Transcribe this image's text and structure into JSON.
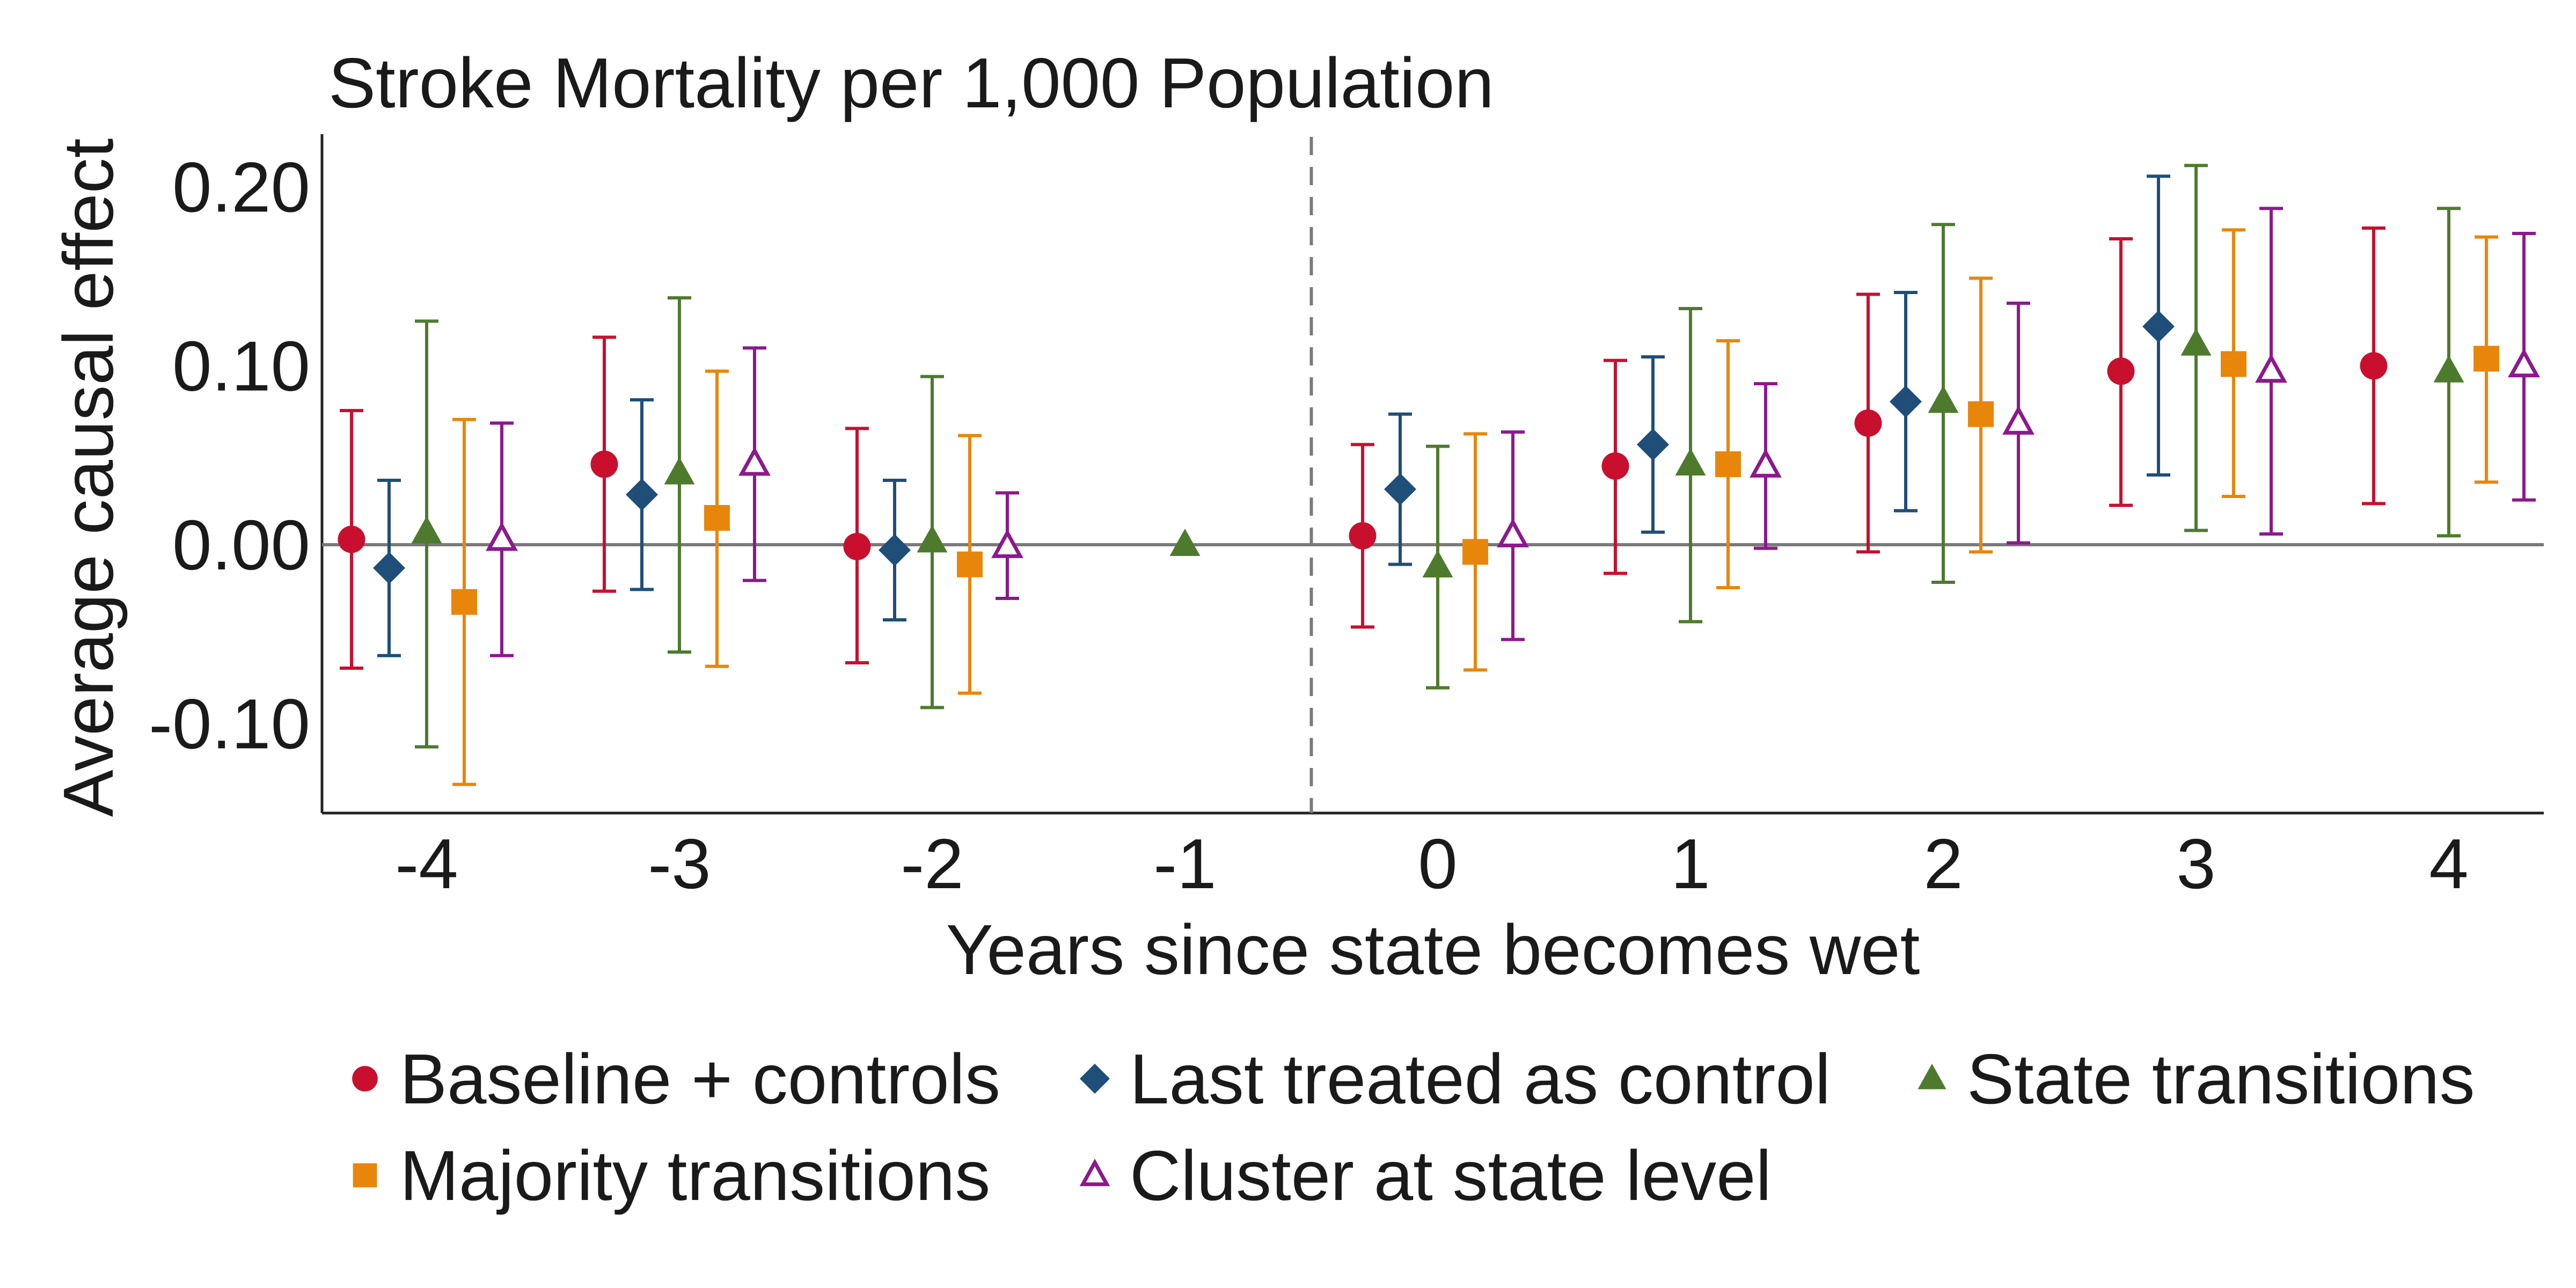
{
  "chart_data": {
    "type": "scatter",
    "title": "Stroke Mortality per 1,000 Population",
    "xlabel": "Years since state becomes wet",
    "ylabel": "Average causal effect",
    "x_categories": [
      "-4",
      "-3",
      "-2",
      "-1",
      "0",
      "1",
      "2",
      "3",
      "4"
    ],
    "y_ticks": [
      -0.1,
      0.0,
      0.1,
      0.2
    ],
    "y_tick_labels": [
      "-0.10",
      "0.00",
      "0.10",
      "0.20"
    ],
    "ylim": [
      -0.15,
      0.228
    ],
    "reference_line_y": 0.0,
    "treatment_line_between": [
      "-1",
      "0"
    ],
    "legend_position": "bottom",
    "grid": false,
    "series": [
      {
        "name": "Baseline + controls",
        "marker": "circle",
        "color": "#C8102E",
        "points": [
          {
            "x": "-4",
            "est": 0.003,
            "lo": -0.069,
            "hi": 0.075
          },
          {
            "x": "-3",
            "est": 0.045,
            "lo": -0.026,
            "hi": 0.116
          },
          {
            "x": "-2",
            "est": -0.001,
            "lo": -0.066,
            "hi": 0.065
          },
          {
            "x": "0",
            "est": 0.005,
            "lo": -0.046,
            "hi": 0.056
          },
          {
            "x": "1",
            "est": 0.044,
            "lo": -0.016,
            "hi": 0.103
          },
          {
            "x": "2",
            "est": 0.068,
            "lo": -0.004,
            "hi": 0.14
          },
          {
            "x": "3",
            "est": 0.097,
            "lo": 0.022,
            "hi": 0.171
          },
          {
            "x": "4",
            "est": 0.1,
            "lo": 0.023,
            "hi": 0.177
          }
        ]
      },
      {
        "name": "Last treated as control",
        "marker": "diamond",
        "color": "#1F4E79",
        "points": [
          {
            "x": "-4",
            "est": -0.013,
            "lo": -0.062,
            "hi": 0.036
          },
          {
            "x": "-3",
            "est": 0.028,
            "lo": -0.025,
            "hi": 0.081
          },
          {
            "x": "-2",
            "est": -0.003,
            "lo": -0.042,
            "hi": 0.036
          },
          {
            "x": "0",
            "est": 0.031,
            "lo": -0.011,
            "hi": 0.073
          },
          {
            "x": "1",
            "est": 0.056,
            "lo": 0.007,
            "hi": 0.105
          },
          {
            "x": "2",
            "est": 0.08,
            "lo": 0.019,
            "hi": 0.141
          },
          {
            "x": "3",
            "est": 0.122,
            "lo": 0.039,
            "hi": 0.206
          }
        ]
      },
      {
        "name": "State transitions",
        "marker": "triangle",
        "color": "#4E7A2E",
        "points": [
          {
            "x": "-4",
            "est": 0.007,
            "lo": -0.113,
            "hi": 0.125
          },
          {
            "x": "-3",
            "est": 0.04,
            "lo": -0.06,
            "hi": 0.138
          },
          {
            "x": "-2",
            "est": 0.002,
            "lo": -0.091,
            "hi": 0.094
          },
          {
            "x": "-1",
            "est": 0.0
          },
          {
            "x": "0",
            "est": -0.012,
            "lo": -0.08,
            "hi": 0.055
          },
          {
            "x": "1",
            "est": 0.045,
            "lo": -0.043,
            "hi": 0.132
          },
          {
            "x": "2",
            "est": 0.08,
            "lo": -0.021,
            "hi": 0.179
          },
          {
            "x": "3",
            "est": 0.112,
            "lo": 0.008,
            "hi": 0.212
          },
          {
            "x": "4",
            "est": 0.097,
            "lo": 0.005,
            "hi": 0.188
          }
        ]
      },
      {
        "name": "Majority transitions",
        "marker": "square",
        "color": "#E8860C",
        "points": [
          {
            "x": "-4",
            "est": -0.032,
            "lo": -0.134,
            "hi": 0.07
          },
          {
            "x": "-3",
            "est": 0.015,
            "lo": -0.068,
            "hi": 0.097
          },
          {
            "x": "-2",
            "est": -0.011,
            "lo": -0.083,
            "hi": 0.061
          },
          {
            "x": "0",
            "est": -0.004,
            "lo": -0.07,
            "hi": 0.062
          },
          {
            "x": "1",
            "est": 0.045,
            "lo": -0.024,
            "hi": 0.114
          },
          {
            "x": "2",
            "est": 0.073,
            "lo": -0.004,
            "hi": 0.149
          },
          {
            "x": "3",
            "est": 0.101,
            "lo": 0.027,
            "hi": 0.176
          },
          {
            "x": "4",
            "est": 0.104,
            "lo": 0.035,
            "hi": 0.172
          }
        ]
      },
      {
        "name": "Cluster at state level",
        "marker": "triangle-open",
        "color": "#8B1A8B",
        "points": [
          {
            "x": "-4",
            "est": 0.003,
            "lo": -0.062,
            "hi": 0.068
          },
          {
            "x": "-3",
            "est": 0.045,
            "lo": -0.02,
            "hi": 0.11
          },
          {
            "x": "-2",
            "est": -0.001,
            "lo": -0.03,
            "hi": 0.029
          },
          {
            "x": "0",
            "est": 0.005,
            "lo": -0.053,
            "hi": 0.063
          },
          {
            "x": "1",
            "est": 0.044,
            "lo": -0.002,
            "hi": 0.09
          },
          {
            "x": "2",
            "est": 0.068,
            "lo": 0.001,
            "hi": 0.135
          },
          {
            "x": "3",
            "est": 0.097,
            "lo": 0.006,
            "hi": 0.188
          },
          {
            "x": "4",
            "est": 0.1,
            "lo": 0.025,
            "hi": 0.174
          }
        ]
      }
    ]
  }
}
